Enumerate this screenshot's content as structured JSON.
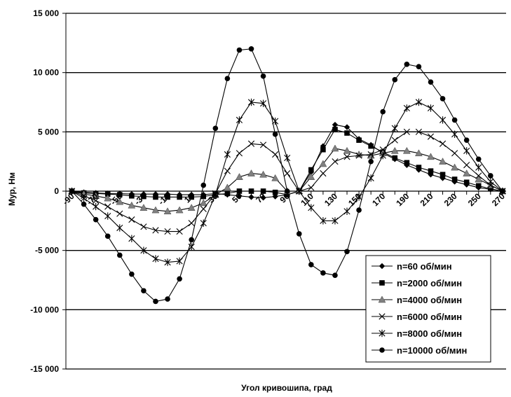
{
  "chart_data": {
    "type": "line",
    "title": "",
    "xlabel": "Угол кривошипа, град",
    "ylabel": "Мур, Нм",
    "ylim": [
      -15000,
      15000
    ],
    "y_ticks": [
      -15000,
      -10000,
      -5000,
      0,
      5000,
      10000,
      15000
    ],
    "y_tick_labels": [
      "-15 000",
      "-10 000",
      "-5 000",
      "0",
      "5 000",
      "10 000",
      "15 000"
    ],
    "x_ticks": [
      -90,
      -70,
      -50,
      -30,
      -10,
      10,
      30,
      50,
      70,
      90,
      110,
      130,
      150,
      170,
      190,
      210,
      230,
      250,
      270
    ],
    "x_tick_labels": [
      "-90",
      "-70",
      "-50",
      "-30",
      "-10",
      "10",
      "30",
      "50",
      "70",
      "90",
      "110",
      "130",
      "150",
      "170",
      "190",
      "210",
      "230",
      "250",
      "270"
    ],
    "grid": "horizontal",
    "legend_position": "bottom-right",
    "x": [
      -90,
      -80,
      -70,
      -60,
      -50,
      -40,
      -30,
      -20,
      -10,
      0,
      10,
      20,
      30,
      40,
      50,
      60,
      70,
      80,
      90,
      100,
      110,
      120,
      130,
      140,
      150,
      160,
      170,
      180,
      190,
      200,
      210,
      220,
      230,
      240,
      250,
      260,
      270
    ],
    "series": [
      {
        "name": "n=60 об/мин",
        "marker": "diamond",
        "values": [
          0,
          -100,
          -150,
          -200,
          -200,
          -250,
          -250,
          -250,
          -250,
          -300,
          -300,
          -300,
          -200,
          -300,
          -400,
          -500,
          -550,
          -450,
          -300,
          0,
          1600,
          3800,
          5600,
          5400,
          4400,
          3900,
          3200,
          2700,
          2200,
          1800,
          1400,
          1100,
          800,
          550,
          300,
          150,
          0
        ]
      },
      {
        "name": "n=2000 об/мин",
        "marker": "square",
        "values": [
          0,
          -150,
          -200,
          -250,
          -300,
          -400,
          -450,
          -500,
          -500,
          -500,
          -500,
          -450,
          -300,
          -200,
          0,
          0,
          0,
          -100,
          -300,
          0,
          1800,
          3500,
          5200,
          4900,
          4300,
          3800,
          3300,
          2800,
          2400,
          2000,
          1700,
          1400,
          1000,
          750,
          450,
          200,
          0
        ]
      },
      {
        "name": "n=4000 об/мин",
        "marker": "triangle",
        "values": [
          0,
          -250,
          -400,
          -600,
          -900,
          -1200,
          -1400,
          -1600,
          -1700,
          -1600,
          -1400,
          -1000,
          -300,
          300,
          1200,
          1500,
          1400,
          1100,
          0,
          0,
          1200,
          2300,
          3600,
          3400,
          3100,
          3000,
          3200,
          3400,
          3400,
          3200,
          2900,
          2500,
          2000,
          1500,
          1000,
          500,
          0
        ]
      },
      {
        "name": "n=6000 об/мин",
        "marker": "x",
        "values": [
          0,
          -400,
          -800,
          -1300,
          -1900,
          -2400,
          -3000,
          -3300,
          -3400,
          -3400,
          -2700,
          -1500,
          -200,
          1700,
          3200,
          4000,
          3900,
          3100,
          1500,
          0,
          300,
          1500,
          2500,
          2900,
          3000,
          3100,
          3500,
          4300,
          5000,
          5000,
          4600,
          4000,
          3200,
          2200,
          1300,
          500,
          0
        ]
      },
      {
        "name": "n=8000 об/мин",
        "marker": "star",
        "values": [
          0,
          -600,
          -1300,
          -2100,
          -3100,
          -4000,
          -5000,
          -5700,
          -6000,
          -5900,
          -4700,
          -2700,
          -300,
          3100,
          6000,
          7500,
          7400,
          5900,
          2800,
          0,
          -1400,
          -2500,
          -2500,
          -1700,
          -500,
          1100,
          3000,
          5300,
          7000,
          7500,
          7000,
          6000,
          4800,
          3400,
          2000,
          800,
          0
        ]
      },
      {
        "name": "n=10000 об/мин",
        "marker": "circle",
        "values": [
          0,
          -1100,
          -2400,
          -3800,
          -5400,
          -7000,
          -8400,
          -9300,
          -9100,
          -7400,
          -4100,
          500,
          5300,
          9500,
          11900,
          12000,
          9700,
          4800,
          0,
          -3600,
          -6200,
          -6900,
          -7100,
          -5100,
          -1600,
          2500,
          6700,
          9400,
          10700,
          10500,
          9200,
          7800,
          6000,
          4300,
          2700,
          1300,
          0
        ]
      }
    ]
  }
}
